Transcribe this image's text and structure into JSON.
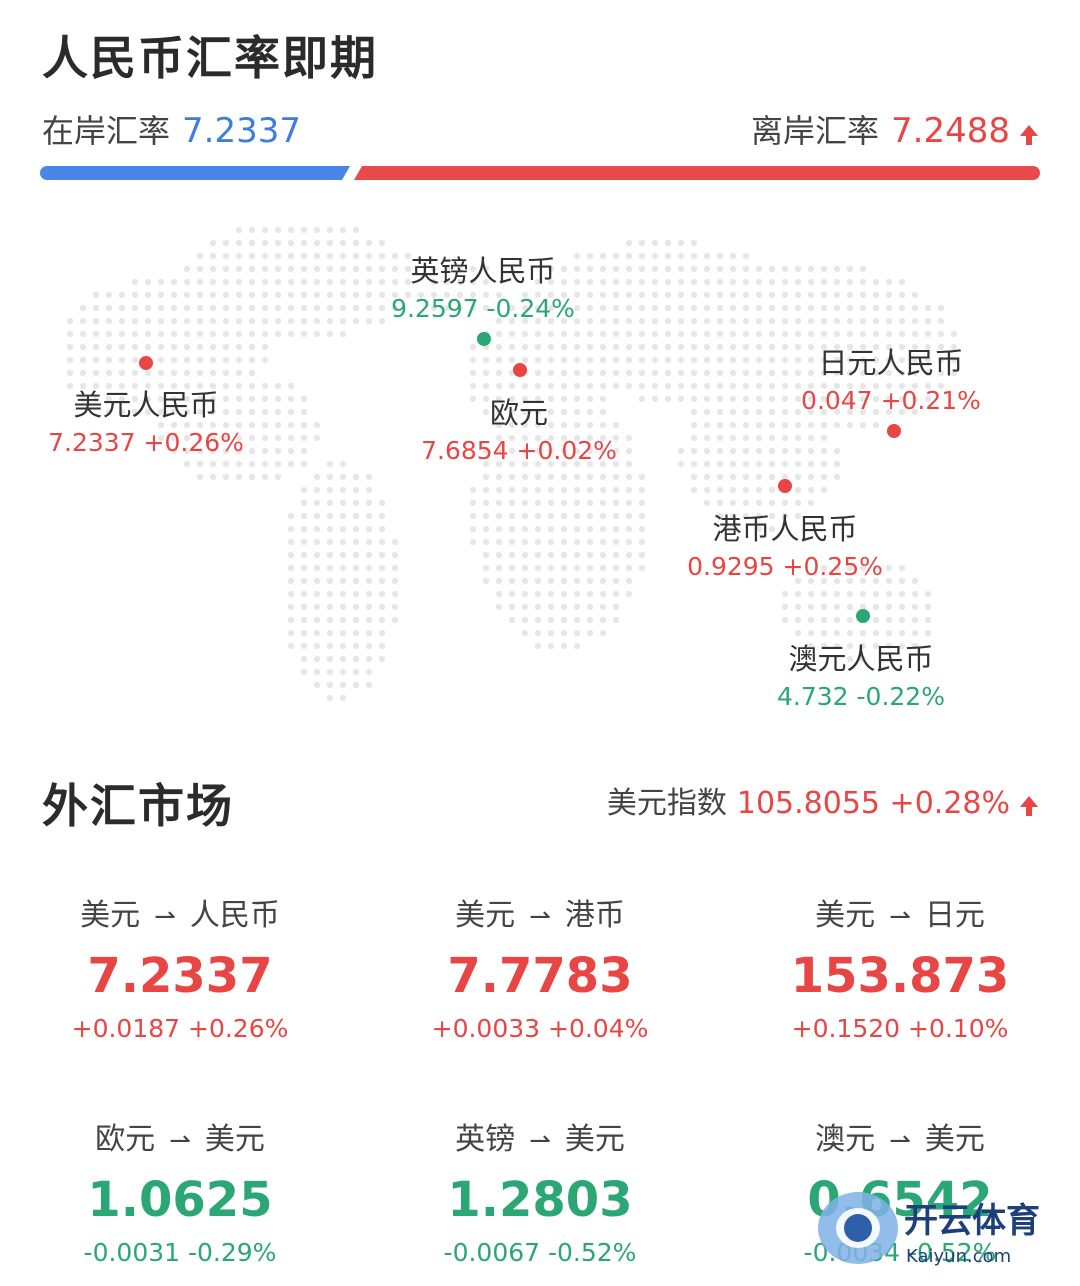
{
  "header": {
    "title": "人民币汇率即期",
    "onshore_label": "在岸汇率",
    "onshore_value": "7.2337",
    "offshore_label": "离岸汇率",
    "offshore_value": "7.2488",
    "onshore_share": 0.31
  },
  "map_pins": [
    {
      "name": "英镑人民币",
      "value": "9.2597 -0.24%",
      "trend": "down"
    },
    {
      "name": "美元人民币",
      "value": "7.2337 +0.26%",
      "trend": "up"
    },
    {
      "name": "欧元",
      "value": "7.6854 +0.02%",
      "trend": "up"
    },
    {
      "name": "日元人民币",
      "value": "0.047 +0.21%",
      "trend": "up"
    },
    {
      "name": "港币人民币",
      "value": "0.9295 +0.25%",
      "trend": "up"
    },
    {
      "name": "澳元人民币",
      "value": "4.732 -0.22%",
      "trend": "down"
    }
  ],
  "market": {
    "title": "外汇市场",
    "dxy_label": "美元指数",
    "dxy_value": "105.8055 +0.28%",
    "pairs": [
      {
        "from": "美元",
        "to": "人民币",
        "rate": "7.2337",
        "change": "+0.0187 +0.26%",
        "trend": "up"
      },
      {
        "from": "美元",
        "to": "港币",
        "rate": "7.7783",
        "change": "+0.0033 +0.04%",
        "trend": "up"
      },
      {
        "from": "美元",
        "to": "日元",
        "rate": "153.873",
        "change": "+0.1520 +0.10%",
        "trend": "up"
      },
      {
        "from": "欧元",
        "to": "美元",
        "rate": "1.0625",
        "change": "-0.0031 -0.29%",
        "trend": "down"
      },
      {
        "from": "英镑",
        "to": "美元",
        "rate": "1.2803",
        "change": "-0.0067 -0.52%",
        "trend": "down"
      },
      {
        "from": "澳元",
        "to": "美元",
        "rate": "0.6542",
        "change": "-0.0034 -0.52%",
        "trend": "down"
      }
    ]
  },
  "watermark": {
    "text": "开云体育",
    "subtext": "Kaiyun.com"
  },
  "colors": {
    "up": "#e84545",
    "down": "#2aa774",
    "onshore": "#4a86e8"
  }
}
